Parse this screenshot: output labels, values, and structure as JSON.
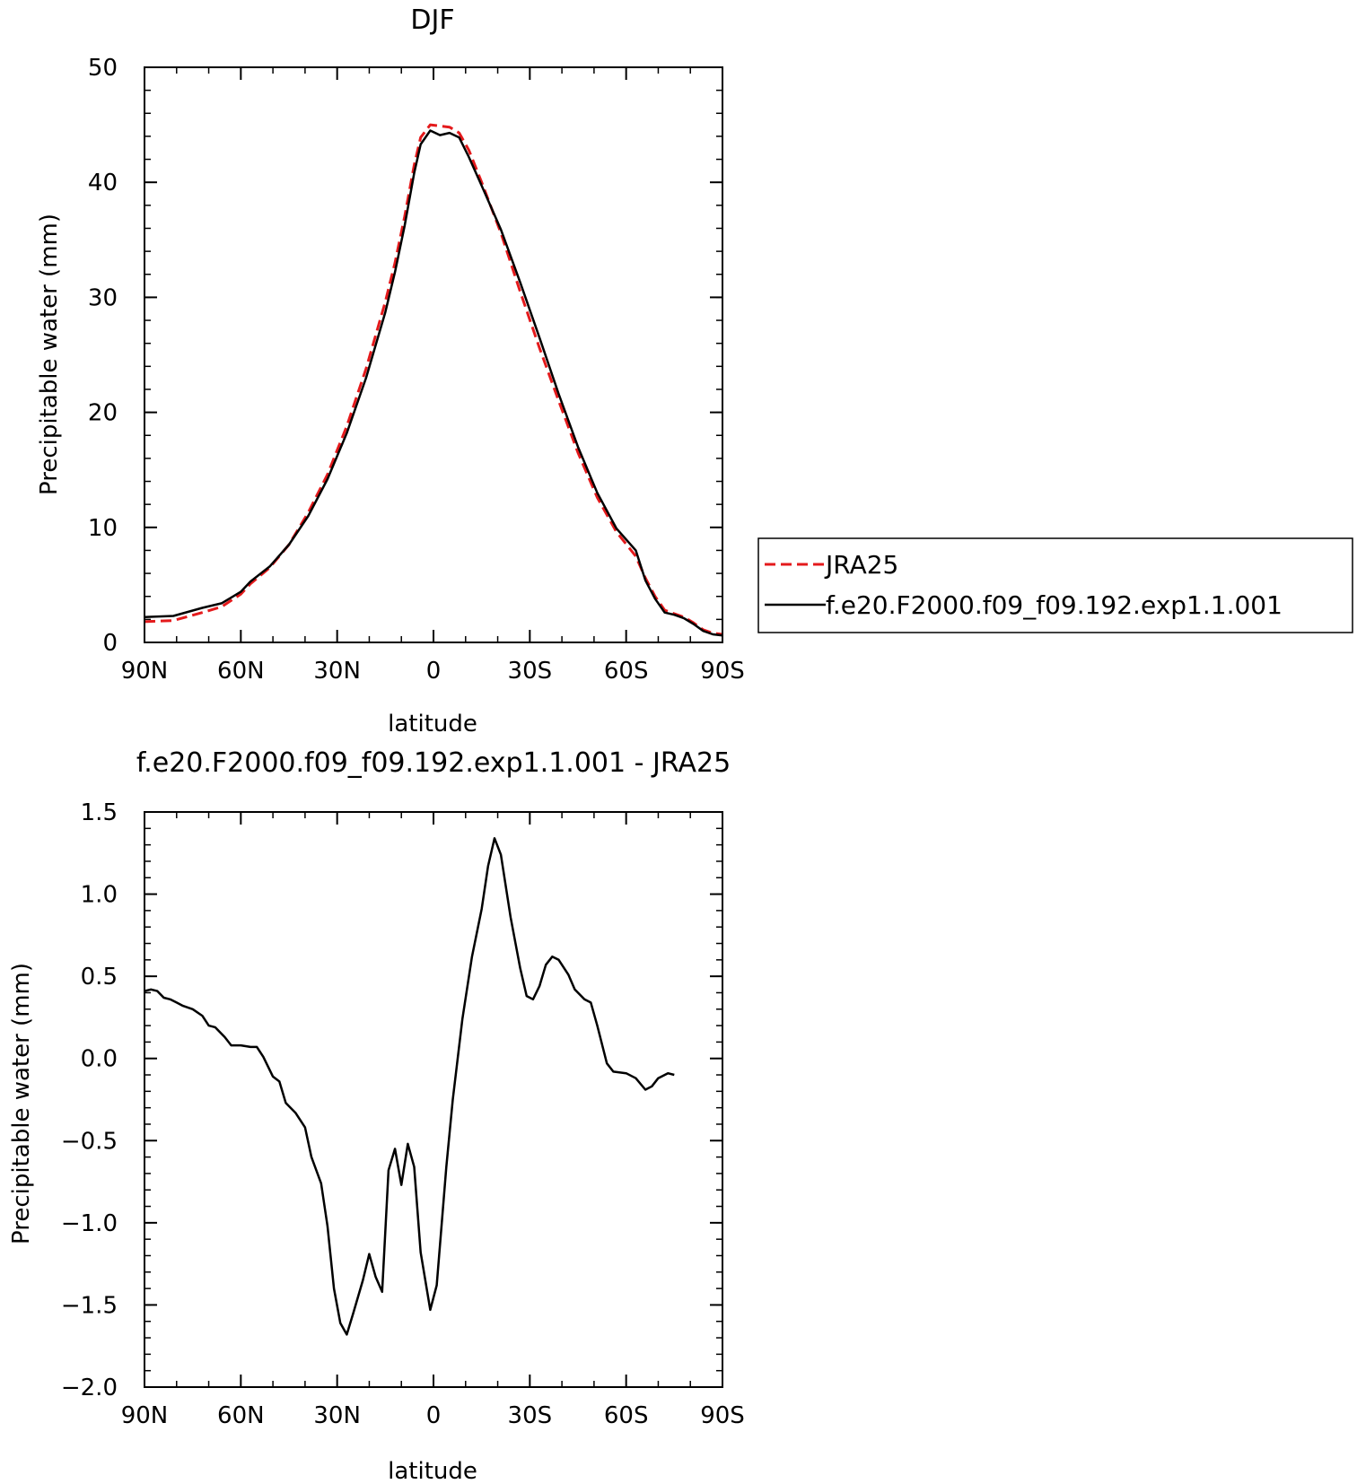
{
  "chart_data": [
    {
      "type": "line",
      "title": "DJF",
      "xlabel": "latitude",
      "ylabel": "Precipitable water (mm)",
      "xlim": [
        90,
        -90
      ],
      "ylim": [
        0,
        50
      ],
      "x_ticks": [
        {
          "value": 90,
          "label": "90N"
        },
        {
          "value": 60,
          "label": "60N"
        },
        {
          "value": 30,
          "label": "30N"
        },
        {
          "value": 0,
          "label": "0"
        },
        {
          "value": -30,
          "label": "30S"
        },
        {
          "value": -60,
          "label": "60S"
        },
        {
          "value": -90,
          "label": "90S"
        }
      ],
      "y_ticks": [
        {
          "value": 0,
          "label": "0"
        },
        {
          "value": 10,
          "label": "10"
        },
        {
          "value": 20,
          "label": "20"
        },
        {
          "value": 30,
          "label": "30"
        },
        {
          "value": 40,
          "label": "40"
        },
        {
          "value": 50,
          "label": "50"
        }
      ],
      "y_minor_step": 2,
      "legend_position": "right",
      "series": [
        {
          "name": "JRA25",
          "color": "#e41a1c",
          "dash": true,
          "points": [
            [
              90,
              1.8
            ],
            [
              81,
              1.9
            ],
            [
              72,
              2.6
            ],
            [
              66,
              3.1
            ],
            [
              60,
              4.2
            ],
            [
              57,
              5.1
            ],
            [
              51,
              6.5
            ],
            [
              45,
              8.5
            ],
            [
              39,
              11.3
            ],
            [
              33,
              14.6
            ],
            [
              27,
              18.8
            ],
            [
              21,
              23.8
            ],
            [
              15,
              29.6
            ],
            [
              12,
              33.0
            ],
            [
              9,
              37.0
            ],
            [
              6,
              41.5
            ],
            [
              4,
              43.9
            ],
            [
              1,
              45.0
            ],
            [
              -2,
              44.9
            ],
            [
              -5,
              44.8
            ],
            [
              -8,
              44.3
            ],
            [
              -11,
              42.8
            ],
            [
              -15,
              40.0
            ],
            [
              -21,
              35.6
            ],
            [
              -27,
              30.5
            ],
            [
              -33,
              25.6
            ],
            [
              -39,
              21.0
            ],
            [
              -45,
              16.5
            ],
            [
              -51,
              12.6
            ],
            [
              -57,
              9.6
            ],
            [
              -63,
              7.5
            ],
            [
              -66,
              5.6
            ],
            [
              -69,
              4.0
            ],
            [
              -72,
              2.8
            ],
            [
              -75,
              2.5
            ],
            [
              -78,
              2.2
            ],
            [
              -81,
              1.7
            ],
            [
              -84,
              1.1
            ],
            [
              -87,
              0.8
            ],
            [
              -90,
              0.7
            ]
          ]
        },
        {
          "name": "f.e20.F2000.f09_f09.192.exp1.1.001",
          "color": "#000000",
          "dash": false,
          "points": [
            [
              90,
              2.2
            ],
            [
              81,
              2.3
            ],
            [
              72,
              3.0
            ],
            [
              66,
              3.4
            ],
            [
              60,
              4.4
            ],
            [
              57,
              5.3
            ],
            [
              51,
              6.6
            ],
            [
              45,
              8.5
            ],
            [
              39,
              11.0
            ],
            [
              33,
              14.2
            ],
            [
              27,
              18.2
            ],
            [
              21,
              23.0
            ],
            [
              15,
              28.7
            ],
            [
              12,
              32.2
            ],
            [
              9,
              36.2
            ],
            [
              6,
              40.8
            ],
            [
              4,
              43.3
            ],
            [
              1,
              44.5
            ],
            [
              -2,
              44.1
            ],
            [
              -5,
              44.3
            ],
            [
              -8,
              43.9
            ],
            [
              -11,
              42.2
            ],
            [
              -15,
              39.7
            ],
            [
              -21,
              35.9
            ],
            [
              -27,
              31.3
            ],
            [
              -33,
              26.5
            ],
            [
              -39,
              21.6
            ],
            [
              -45,
              17.0
            ],
            [
              -51,
              13.0
            ],
            [
              -57,
              9.9
            ],
            [
              -63,
              8.0
            ],
            [
              -66,
              5.4
            ],
            [
              -69,
              3.8
            ],
            [
              -72,
              2.6
            ],
            [
              -75,
              2.4
            ],
            [
              -78,
              2.1
            ],
            [
              -81,
              1.6
            ],
            [
              -84,
              1.0
            ],
            [
              -87,
              0.7
            ],
            [
              -90,
              0.6
            ]
          ]
        }
      ]
    },
    {
      "type": "line",
      "title": "f.e20.F2000.f09_f09.192.exp1.1.001 - JRA25",
      "xlabel": "latitude",
      "ylabel": "Precipitable water (mm)",
      "xlim": [
        90,
        -90
      ],
      "ylim": [
        -2.0,
        1.5
      ],
      "x_ticks": [
        {
          "value": 90,
          "label": "90N"
        },
        {
          "value": 60,
          "label": "60N"
        },
        {
          "value": 30,
          "label": "30N"
        },
        {
          "value": 0,
          "label": "0"
        },
        {
          "value": -30,
          "label": "30S"
        },
        {
          "value": -60,
          "label": "60S"
        },
        {
          "value": -90,
          "label": "90S"
        }
      ],
      "y_ticks": [
        {
          "value": -2.0,
          "label": "−2.0"
        },
        {
          "value": -1.5,
          "label": "−1.5"
        },
        {
          "value": -1.0,
          "label": "−1.0"
        },
        {
          "value": -0.5,
          "label": "−0.5"
        },
        {
          "value": 0.0,
          "label": "0.0"
        },
        {
          "value": 0.5,
          "label": "0.5"
        },
        {
          "value": 1.0,
          "label": "1.0"
        },
        {
          "value": 1.5,
          "label": "1.5"
        }
      ],
      "y_minor_step": 0.1,
      "series": [
        {
          "color": "#000000",
          "dash": false,
          "points": [
            [
              90,
              0.41
            ],
            [
              88,
              0.42
            ],
            [
              86,
              0.41
            ],
            [
              84,
              0.37
            ],
            [
              82,
              0.36
            ],
            [
              80,
              0.34
            ],
            [
              78,
              0.32
            ],
            [
              75,
              0.3
            ],
            [
              72,
              0.26
            ],
            [
              70,
              0.2
            ],
            [
              68,
              0.19
            ],
            [
              65,
              0.13
            ],
            [
              63,
              0.08
            ],
            [
              60,
              0.08
            ],
            [
              57,
              0.07
            ],
            [
              55,
              0.07
            ],
            [
              53,
              0.01
            ],
            [
              50,
              -0.11
            ],
            [
              48,
              -0.14
            ],
            [
              46,
              -0.27
            ],
            [
              43,
              -0.33
            ],
            [
              40,
              -0.42
            ],
            [
              38,
              -0.6
            ],
            [
              35,
              -0.76
            ],
            [
              33,
              -1.02
            ],
            [
              31,
              -1.4
            ],
            [
              29,
              -1.61
            ],
            [
              27,
              -1.68
            ],
            [
              25,
              -1.55
            ],
            [
              22,
              -1.35
            ],
            [
              20,
              -1.19
            ],
            [
              18,
              -1.33
            ],
            [
              16,
              -1.42
            ],
            [
              14,
              -0.68
            ],
            [
              12,
              -0.55
            ],
            [
              10,
              -0.77
            ],
            [
              8,
              -0.52
            ],
            [
              6,
              -0.66
            ],
            [
              4,
              -1.18
            ],
            [
              1,
              -1.53
            ],
            [
              -1,
              -1.38
            ],
            [
              -4,
              -0.66
            ],
            [
              -6,
              -0.25
            ],
            [
              -9,
              0.24
            ],
            [
              -12,
              0.62
            ],
            [
              -15,
              0.91
            ],
            [
              -17,
              1.17
            ],
            [
              -19,
              1.34
            ],
            [
              -21,
              1.24
            ],
            [
              -24,
              0.86
            ],
            [
              -27,
              0.55
            ],
            [
              -29,
              0.38
            ],
            [
              -31,
              0.36
            ],
            [
              -33,
              0.44
            ],
            [
              -35,
              0.57
            ],
            [
              -37,
              0.62
            ],
            [
              -39,
              0.6
            ],
            [
              -42,
              0.51
            ],
            [
              -44,
              0.42
            ],
            [
              -47,
              0.36
            ],
            [
              -49,
              0.34
            ],
            [
              -51,
              0.2
            ],
            [
              -54,
              -0.03
            ],
            [
              -56,
              -0.08
            ],
            [
              -60,
              -0.09
            ],
            [
              -63,
              -0.12
            ],
            [
              -66,
              -0.19
            ],
            [
              -68,
              -0.17
            ],
            [
              -70,
              -0.12
            ],
            [
              -73,
              -0.09
            ],
            [
              -75,
              -0.1
            ]
          ]
        }
      ]
    }
  ]
}
